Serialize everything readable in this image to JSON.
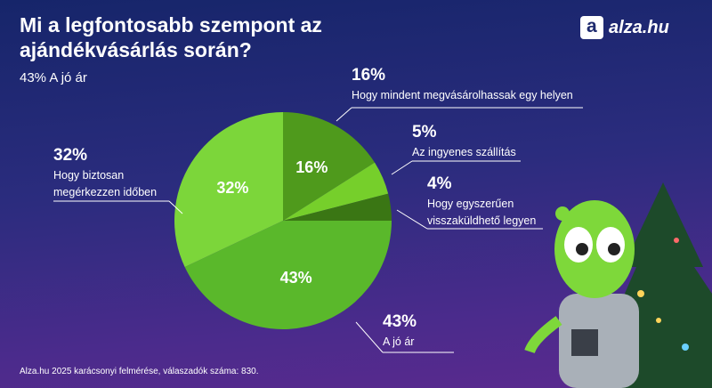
{
  "chart_data": {
    "type": "pie",
    "title": "Mi a legfontosabb szempont az ajándékvásárlás során?",
    "subtitle": "43% A jó ár",
    "categories": [
      "Hogy mindent megvásárolhassak egy helyen",
      "Az ingyenes szállítás",
      "Hogy egyszerűen visszaküldhető legyen",
      "A jó ár",
      "Hogy biztosan megérkezzen időben"
    ],
    "values": [
      16,
      5,
      4,
      43,
      32
    ],
    "value_labels": [
      "16%",
      "5%",
      "4%",
      "43%",
      "32%"
    ],
    "colors": [
      "#4f9a1c",
      "#76cf2b",
      "#3a7614",
      "#5ab82b",
      "#7cd63a"
    ],
    "source": "Alza.hu 2025 karácsonyi felmérése, válaszadók száma: 830.",
    "brand": "alza.hu"
  }
}
